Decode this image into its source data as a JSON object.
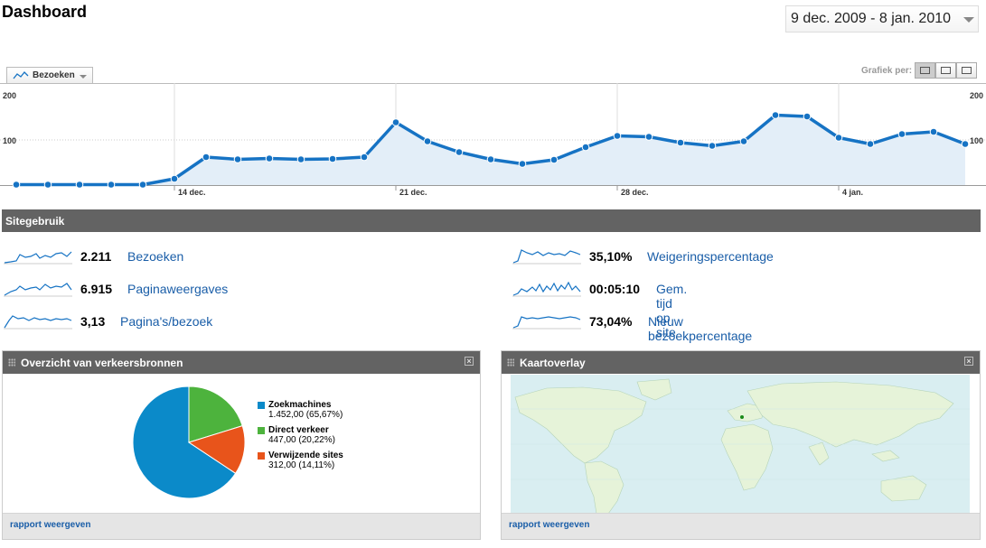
{
  "header": {
    "title": "Dashboard",
    "date_range": "9 dec. 2009 - 8 jan. 2010"
  },
  "graph_controls": {
    "metric_label": "Bezoeken",
    "grafiek_label": "Grafiek per:"
  },
  "chart_data": {
    "type": "area",
    "y_ticks": [
      "200",
      "100"
    ],
    "x_tick_labels": [
      "14 dec.",
      "21 dec.",
      "28 dec.",
      "4 jan."
    ],
    "ylim": [
      0,
      200
    ],
    "values": [
      1,
      1,
      1,
      1,
      1,
      14,
      62,
      57,
      59,
      57,
      58,
      62,
      139,
      97,
      73,
      57,
      47,
      56,
      84,
      109,
      107,
      94,
      87,
      97,
      155,
      152,
      105,
      91,
      113,
      118,
      91
    ],
    "color_line": "#1673c4",
    "color_fill": "#e3eef8"
  },
  "sitebar": {
    "title": "Sitegebruik"
  },
  "stats": [
    {
      "num": "2.211",
      "label": "Bezoeken"
    },
    {
      "num": "6.915",
      "label": "Paginaweergaves"
    },
    {
      "num": "3,13",
      "label": "Pagina's/bezoek"
    },
    {
      "num": "35,10%",
      "label": "Weigeringspercentage"
    },
    {
      "num": "00:05:10",
      "label": "Gem. tijd op site"
    },
    {
      "num": "73,04%",
      "label": "Nieuw bezoekpercentage"
    }
  ],
  "traffic": {
    "title": "Overzicht van verkeersbronnen",
    "report_link": "rapport weergeven",
    "sources": [
      {
        "name": "Zoekmachines",
        "value": "1.452,00 (65,67%)",
        "pct": 65.67,
        "color": "#0b8ac9"
      },
      {
        "name": "Direct verkeer",
        "value": "447,00 (20,22%)",
        "pct": 20.22,
        "color": "#4db33d"
      },
      {
        "name": "Verwijzende sites",
        "value": "312,00 (14,11%)",
        "pct": 14.11,
        "color": "#e8541b"
      }
    ]
  },
  "map_panel": {
    "title": "Kaartoverlay",
    "report_link": "rapport weergeven"
  }
}
